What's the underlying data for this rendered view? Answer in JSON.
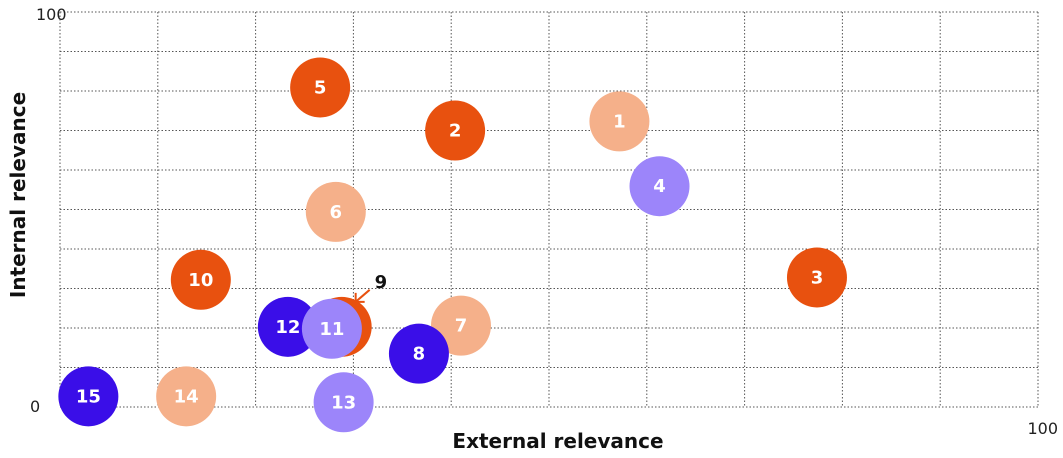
{
  "chart_data": {
    "type": "scatter",
    "xlabel": "External relevance",
    "ylabel": "Internal relevance",
    "xlim": [
      0,
      100
    ],
    "ylim": [
      0,
      100
    ],
    "x_tick_labels": {
      "min": "0",
      "max": "100"
    },
    "y_tick_labels": {
      "min": "0",
      "max": "100"
    },
    "grid": true,
    "grid_style": "dotted",
    "colors": {
      "orange": "#E8510F",
      "peach": "#F5B08A",
      "lavender": "#9C85FA",
      "blue": "#3A0EE8",
      "grid": "#555555"
    },
    "points": [
      {
        "label": "1",
        "x": 57.2,
        "y": 72.3,
        "color": "peach"
      },
      {
        "label": "2",
        "x": 40.4,
        "y": 70.0,
        "color": "orange"
      },
      {
        "label": "3",
        "x": 77.4,
        "y": 32.8,
        "color": "orange"
      },
      {
        "label": "4",
        "x": 61.3,
        "y": 55.9,
        "color": "lavender"
      },
      {
        "label": "5",
        "x": 26.6,
        "y": 80.9,
        "color": "orange"
      },
      {
        "label": "6",
        "x": 28.2,
        "y": 49.4,
        "color": "peach"
      },
      {
        "label": "7",
        "x": 41.0,
        "y": 20.6,
        "color": "peach"
      },
      {
        "label": "8",
        "x": 36.7,
        "y": 13.5,
        "color": "blue"
      },
      {
        "label": "9",
        "x": 28.8,
        "y": 20.3,
        "color": "orange",
        "callout": true
      },
      {
        "label": "10",
        "x": 14.4,
        "y": 32.2,
        "color": "orange"
      },
      {
        "label": "11",
        "x": 27.8,
        "y": 19.8,
        "color": "lavender"
      },
      {
        "label": "12",
        "x": 23.3,
        "y": 20.3,
        "color": "blue"
      },
      {
        "label": "13",
        "x": 29.0,
        "y": 1.2,
        "color": "lavender"
      },
      {
        "label": "14",
        "x": 12.9,
        "y": 2.7,
        "color": "peach"
      },
      {
        "label": "15",
        "x": 2.9,
        "y": 2.7,
        "color": "blue"
      }
    ]
  }
}
